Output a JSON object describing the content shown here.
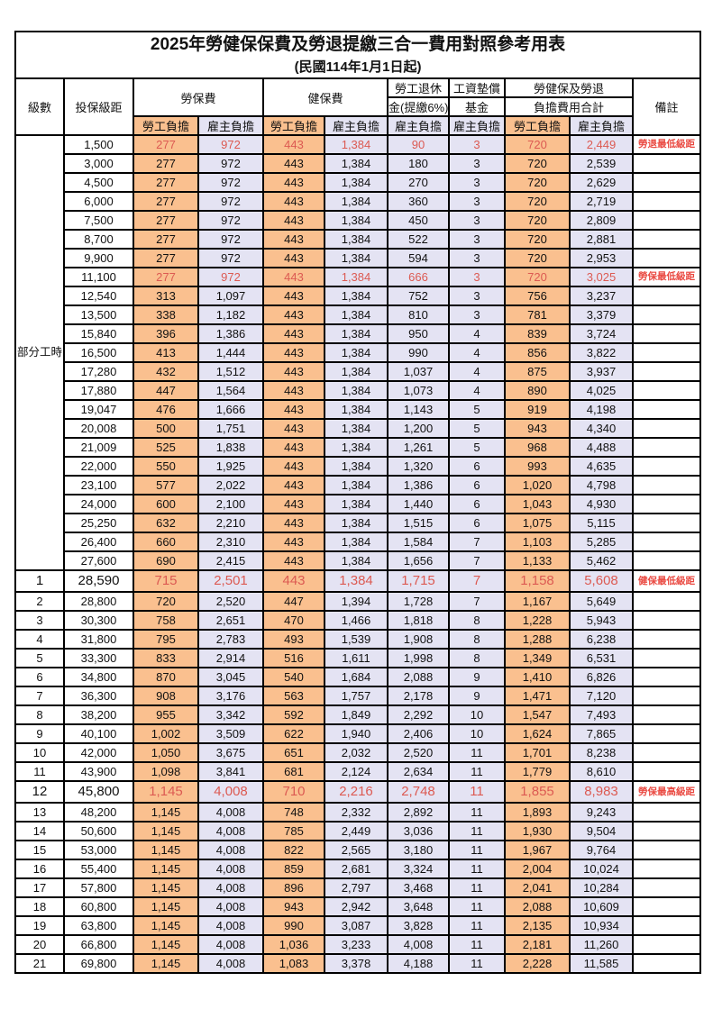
{
  "title": "2025年勞健保保費及勞退提繳三合一費用對照參考用表",
  "subtitle": "(民國114年1月1日起)",
  "header": {
    "level": "級數",
    "bracket": "投保級距",
    "labor_insurance": "勞保費",
    "health_insurance": "健保費",
    "pension_line1": "勞工退休",
    "pension_line2": "金(提繳6%)",
    "wage_fund_line1": "工資墊償",
    "wage_fund_line2": "基金",
    "total_line1": "勞健保及勞退",
    "total_line2": "負擔費用合計",
    "remark": "備註",
    "employee": "勞工負擔",
    "employer": "雇主負擔"
  },
  "part_time_label": "部分工時",
  "part_time_rowspan": 23,
  "colors": {
    "employee_bg": "#FAC08F",
    "employer_bg": "#E4E3F3",
    "value_red": "#DC5A52",
    "remark_red": "#EA4A42",
    "border": "#000000"
  },
  "rows": [
    {
      "level": "",
      "bracket": "1,500",
      "li_emp": "277",
      "li_er": "972",
      "hi_emp": "443",
      "hi_er": "1,384",
      "pension": "90",
      "fund": "3",
      "tot_emp": "720",
      "tot_er": "2,449",
      "remark": "勞退最低級距",
      "red": true,
      "emph": false
    },
    {
      "level": "",
      "bracket": "3,000",
      "li_emp": "277",
      "li_er": "972",
      "hi_emp": "443",
      "hi_er": "1,384",
      "pension": "180",
      "fund": "3",
      "tot_emp": "720",
      "tot_er": "2,539",
      "remark": "",
      "red": false,
      "emph": false
    },
    {
      "level": "",
      "bracket": "4,500",
      "li_emp": "277",
      "li_er": "972",
      "hi_emp": "443",
      "hi_er": "1,384",
      "pension": "270",
      "fund": "3",
      "tot_emp": "720",
      "tot_er": "2,629",
      "remark": "",
      "red": false,
      "emph": false
    },
    {
      "level": "",
      "bracket": "6,000",
      "li_emp": "277",
      "li_er": "972",
      "hi_emp": "443",
      "hi_er": "1,384",
      "pension": "360",
      "fund": "3",
      "tot_emp": "720",
      "tot_er": "2,719",
      "remark": "",
      "red": false,
      "emph": false
    },
    {
      "level": "",
      "bracket": "7,500",
      "li_emp": "277",
      "li_er": "972",
      "hi_emp": "443",
      "hi_er": "1,384",
      "pension": "450",
      "fund": "3",
      "tot_emp": "720",
      "tot_er": "2,809",
      "remark": "",
      "red": false,
      "emph": false
    },
    {
      "level": "",
      "bracket": "8,700",
      "li_emp": "277",
      "li_er": "972",
      "hi_emp": "443",
      "hi_er": "1,384",
      "pension": "522",
      "fund": "3",
      "tot_emp": "720",
      "tot_er": "2,881",
      "remark": "",
      "red": false,
      "emph": false
    },
    {
      "level": "",
      "bracket": "9,900",
      "li_emp": "277",
      "li_er": "972",
      "hi_emp": "443",
      "hi_er": "1,384",
      "pension": "594",
      "fund": "3",
      "tot_emp": "720",
      "tot_er": "2,953",
      "remark": "",
      "red": false,
      "emph": false
    },
    {
      "level": "",
      "bracket": "11,100",
      "li_emp": "277",
      "li_er": "972",
      "hi_emp": "443",
      "hi_er": "1,384",
      "pension": "666",
      "fund": "3",
      "tot_emp": "720",
      "tot_er": "3,025",
      "remark": "勞保最低級距",
      "red": true,
      "emph": false
    },
    {
      "level": "",
      "bracket": "12,540",
      "li_emp": "313",
      "li_er": "1,097",
      "hi_emp": "443",
      "hi_er": "1,384",
      "pension": "752",
      "fund": "3",
      "tot_emp": "756",
      "tot_er": "3,237",
      "remark": "",
      "red": false,
      "emph": false
    },
    {
      "level": "",
      "bracket": "13,500",
      "li_emp": "338",
      "li_er": "1,182",
      "hi_emp": "443",
      "hi_er": "1,384",
      "pension": "810",
      "fund": "3",
      "tot_emp": "781",
      "tot_er": "3,379",
      "remark": "",
      "red": false,
      "emph": false
    },
    {
      "level": "",
      "bracket": "15,840",
      "li_emp": "396",
      "li_er": "1,386",
      "hi_emp": "443",
      "hi_er": "1,384",
      "pension": "950",
      "fund": "4",
      "tot_emp": "839",
      "tot_er": "3,724",
      "remark": "",
      "red": false,
      "emph": false
    },
    {
      "level": "",
      "bracket": "16,500",
      "li_emp": "413",
      "li_er": "1,444",
      "hi_emp": "443",
      "hi_er": "1,384",
      "pension": "990",
      "fund": "4",
      "tot_emp": "856",
      "tot_er": "3,822",
      "remark": "",
      "red": false,
      "emph": false
    },
    {
      "level": "",
      "bracket": "17,280",
      "li_emp": "432",
      "li_er": "1,512",
      "hi_emp": "443",
      "hi_er": "1,384",
      "pension": "1,037",
      "fund": "4",
      "tot_emp": "875",
      "tot_er": "3,937",
      "remark": "",
      "red": false,
      "emph": false
    },
    {
      "level": "",
      "bracket": "17,880",
      "li_emp": "447",
      "li_er": "1,564",
      "hi_emp": "443",
      "hi_er": "1,384",
      "pension": "1,073",
      "fund": "4",
      "tot_emp": "890",
      "tot_er": "4,025",
      "remark": "",
      "red": false,
      "emph": false
    },
    {
      "level": "",
      "bracket": "19,047",
      "li_emp": "476",
      "li_er": "1,666",
      "hi_emp": "443",
      "hi_er": "1,384",
      "pension": "1,143",
      "fund": "5",
      "tot_emp": "919",
      "tot_er": "4,198",
      "remark": "",
      "red": false,
      "emph": false
    },
    {
      "level": "",
      "bracket": "20,008",
      "li_emp": "500",
      "li_er": "1,751",
      "hi_emp": "443",
      "hi_er": "1,384",
      "pension": "1,200",
      "fund": "5",
      "tot_emp": "943",
      "tot_er": "4,340",
      "remark": "",
      "red": false,
      "emph": false
    },
    {
      "level": "",
      "bracket": "21,009",
      "li_emp": "525",
      "li_er": "1,838",
      "hi_emp": "443",
      "hi_er": "1,384",
      "pension": "1,261",
      "fund": "5",
      "tot_emp": "968",
      "tot_er": "4,488",
      "remark": "",
      "red": false,
      "emph": false
    },
    {
      "level": "",
      "bracket": "22,000",
      "li_emp": "550",
      "li_er": "1,925",
      "hi_emp": "443",
      "hi_er": "1,384",
      "pension": "1,320",
      "fund": "6",
      "tot_emp": "993",
      "tot_er": "4,635",
      "remark": "",
      "red": false,
      "emph": false
    },
    {
      "level": "",
      "bracket": "23,100",
      "li_emp": "577",
      "li_er": "2,022",
      "hi_emp": "443",
      "hi_er": "1,384",
      "pension": "1,386",
      "fund": "6",
      "tot_emp": "1,020",
      "tot_er": "4,798",
      "remark": "",
      "red": false,
      "emph": false
    },
    {
      "level": "",
      "bracket": "24,000",
      "li_emp": "600",
      "li_er": "2,100",
      "hi_emp": "443",
      "hi_er": "1,384",
      "pension": "1,440",
      "fund": "6",
      "tot_emp": "1,043",
      "tot_er": "4,930",
      "remark": "",
      "red": false,
      "emph": false
    },
    {
      "level": "",
      "bracket": "25,250",
      "li_emp": "632",
      "li_er": "2,210",
      "hi_emp": "443",
      "hi_er": "1,384",
      "pension": "1,515",
      "fund": "6",
      "tot_emp": "1,075",
      "tot_er": "5,115",
      "remark": "",
      "red": false,
      "emph": false
    },
    {
      "level": "",
      "bracket": "26,400",
      "li_emp": "660",
      "li_er": "2,310",
      "hi_emp": "443",
      "hi_er": "1,384",
      "pension": "1,584",
      "fund": "7",
      "tot_emp": "1,103",
      "tot_er": "5,285",
      "remark": "",
      "red": false,
      "emph": false
    },
    {
      "level": "",
      "bracket": "27,600",
      "li_emp": "690",
      "li_er": "2,415",
      "hi_emp": "443",
      "hi_er": "1,384",
      "pension": "1,656",
      "fund": "7",
      "tot_emp": "1,133",
      "tot_er": "5,462",
      "remark": "",
      "red": false,
      "emph": false
    },
    {
      "level": "1",
      "bracket": "28,590",
      "li_emp": "715",
      "li_er": "2,501",
      "hi_emp": "443",
      "hi_er": "1,384",
      "pension": "1,715",
      "fund": "7",
      "tot_emp": "1,158",
      "tot_er": "5,608",
      "remark": "健保最低級距",
      "red": true,
      "emph": true
    },
    {
      "level": "2",
      "bracket": "28,800",
      "li_emp": "720",
      "li_er": "2,520",
      "hi_emp": "447",
      "hi_er": "1,394",
      "pension": "1,728",
      "fund": "7",
      "tot_emp": "1,167",
      "tot_er": "5,649",
      "remark": "",
      "red": false,
      "emph": false
    },
    {
      "level": "3",
      "bracket": "30,300",
      "li_emp": "758",
      "li_er": "2,651",
      "hi_emp": "470",
      "hi_er": "1,466",
      "pension": "1,818",
      "fund": "8",
      "tot_emp": "1,228",
      "tot_er": "5,943",
      "remark": "",
      "red": false,
      "emph": false
    },
    {
      "level": "4",
      "bracket": "31,800",
      "li_emp": "795",
      "li_er": "2,783",
      "hi_emp": "493",
      "hi_er": "1,539",
      "pension": "1,908",
      "fund": "8",
      "tot_emp": "1,288",
      "tot_er": "6,238",
      "remark": "",
      "red": false,
      "emph": false
    },
    {
      "level": "5",
      "bracket": "33,300",
      "li_emp": "833",
      "li_er": "2,914",
      "hi_emp": "516",
      "hi_er": "1,611",
      "pension": "1,998",
      "fund": "8",
      "tot_emp": "1,349",
      "tot_er": "6,531",
      "remark": "",
      "red": false,
      "emph": false
    },
    {
      "level": "6",
      "bracket": "34,800",
      "li_emp": "870",
      "li_er": "3,045",
      "hi_emp": "540",
      "hi_er": "1,684",
      "pension": "2,088",
      "fund": "9",
      "tot_emp": "1,410",
      "tot_er": "6,826",
      "remark": "",
      "red": false,
      "emph": false
    },
    {
      "level": "7",
      "bracket": "36,300",
      "li_emp": "908",
      "li_er": "3,176",
      "hi_emp": "563",
      "hi_er": "1,757",
      "pension": "2,178",
      "fund": "9",
      "tot_emp": "1,471",
      "tot_er": "7,120",
      "remark": "",
      "red": false,
      "emph": false
    },
    {
      "level": "8",
      "bracket": "38,200",
      "li_emp": "955",
      "li_er": "3,342",
      "hi_emp": "592",
      "hi_er": "1,849",
      "pension": "2,292",
      "fund": "10",
      "tot_emp": "1,547",
      "tot_er": "7,493",
      "remark": "",
      "red": false,
      "emph": false
    },
    {
      "level": "9",
      "bracket": "40,100",
      "li_emp": "1,002",
      "li_er": "3,509",
      "hi_emp": "622",
      "hi_er": "1,940",
      "pension": "2,406",
      "fund": "10",
      "tot_emp": "1,624",
      "tot_er": "7,865",
      "remark": "",
      "red": false,
      "emph": false
    },
    {
      "level": "10",
      "bracket": "42,000",
      "li_emp": "1,050",
      "li_er": "3,675",
      "hi_emp": "651",
      "hi_er": "2,032",
      "pension": "2,520",
      "fund": "11",
      "tot_emp": "1,701",
      "tot_er": "8,238",
      "remark": "",
      "red": false,
      "emph": false
    },
    {
      "level": "11",
      "bracket": "43,900",
      "li_emp": "1,098",
      "li_er": "3,841",
      "hi_emp": "681",
      "hi_er": "2,124",
      "pension": "2,634",
      "fund": "11",
      "tot_emp": "1,779",
      "tot_er": "8,610",
      "remark": "",
      "red": false,
      "emph": false
    },
    {
      "level": "12",
      "bracket": "45,800",
      "li_emp": "1,145",
      "li_er": "4,008",
      "hi_emp": "710",
      "hi_er": "2,216",
      "pension": "2,748",
      "fund": "11",
      "tot_emp": "1,855",
      "tot_er": "8,983",
      "remark": "勞保最高級距",
      "red": true,
      "emph": true
    },
    {
      "level": "13",
      "bracket": "48,200",
      "li_emp": "1,145",
      "li_er": "4,008",
      "hi_emp": "748",
      "hi_er": "2,332",
      "pension": "2,892",
      "fund": "11",
      "tot_emp": "1,893",
      "tot_er": "9,243",
      "remark": "",
      "red": false,
      "emph": false
    },
    {
      "level": "14",
      "bracket": "50,600",
      "li_emp": "1,145",
      "li_er": "4,008",
      "hi_emp": "785",
      "hi_er": "2,449",
      "pension": "3,036",
      "fund": "11",
      "tot_emp": "1,930",
      "tot_er": "9,504",
      "remark": "",
      "red": false,
      "emph": false
    },
    {
      "level": "15",
      "bracket": "53,000",
      "li_emp": "1,145",
      "li_er": "4,008",
      "hi_emp": "822",
      "hi_er": "2,565",
      "pension": "3,180",
      "fund": "11",
      "tot_emp": "1,967",
      "tot_er": "9,764",
      "remark": "",
      "red": false,
      "emph": false
    },
    {
      "level": "16",
      "bracket": "55,400",
      "li_emp": "1,145",
      "li_er": "4,008",
      "hi_emp": "859",
      "hi_er": "2,681",
      "pension": "3,324",
      "fund": "11",
      "tot_emp": "2,004",
      "tot_er": "10,024",
      "remark": "",
      "red": false,
      "emph": false
    },
    {
      "level": "17",
      "bracket": "57,800",
      "li_emp": "1,145",
      "li_er": "4,008",
      "hi_emp": "896",
      "hi_er": "2,797",
      "pension": "3,468",
      "fund": "11",
      "tot_emp": "2,041",
      "tot_er": "10,284",
      "remark": "",
      "red": false,
      "emph": false
    },
    {
      "level": "18",
      "bracket": "60,800",
      "li_emp": "1,145",
      "li_er": "4,008",
      "hi_emp": "943",
      "hi_er": "2,942",
      "pension": "3,648",
      "fund": "11",
      "tot_emp": "2,088",
      "tot_er": "10,609",
      "remark": "",
      "red": false,
      "emph": false
    },
    {
      "level": "19",
      "bracket": "63,800",
      "li_emp": "1,145",
      "li_er": "4,008",
      "hi_emp": "990",
      "hi_er": "3,087",
      "pension": "3,828",
      "fund": "11",
      "tot_emp": "2,135",
      "tot_er": "10,934",
      "remark": "",
      "red": false,
      "emph": false
    },
    {
      "level": "20",
      "bracket": "66,800",
      "li_emp": "1,145",
      "li_er": "4,008",
      "hi_emp": "1,036",
      "hi_er": "3,233",
      "pension": "4,008",
      "fund": "11",
      "tot_emp": "2,181",
      "tot_er": "11,260",
      "remark": "",
      "red": false,
      "emph": false
    },
    {
      "level": "21",
      "bracket": "69,800",
      "li_emp": "1,145",
      "li_er": "4,008",
      "hi_emp": "1,083",
      "hi_er": "3,378",
      "pension": "4,188",
      "fund": "11",
      "tot_emp": "2,228",
      "tot_er": "11,585",
      "remark": "",
      "red": false,
      "emph": false
    }
  ]
}
